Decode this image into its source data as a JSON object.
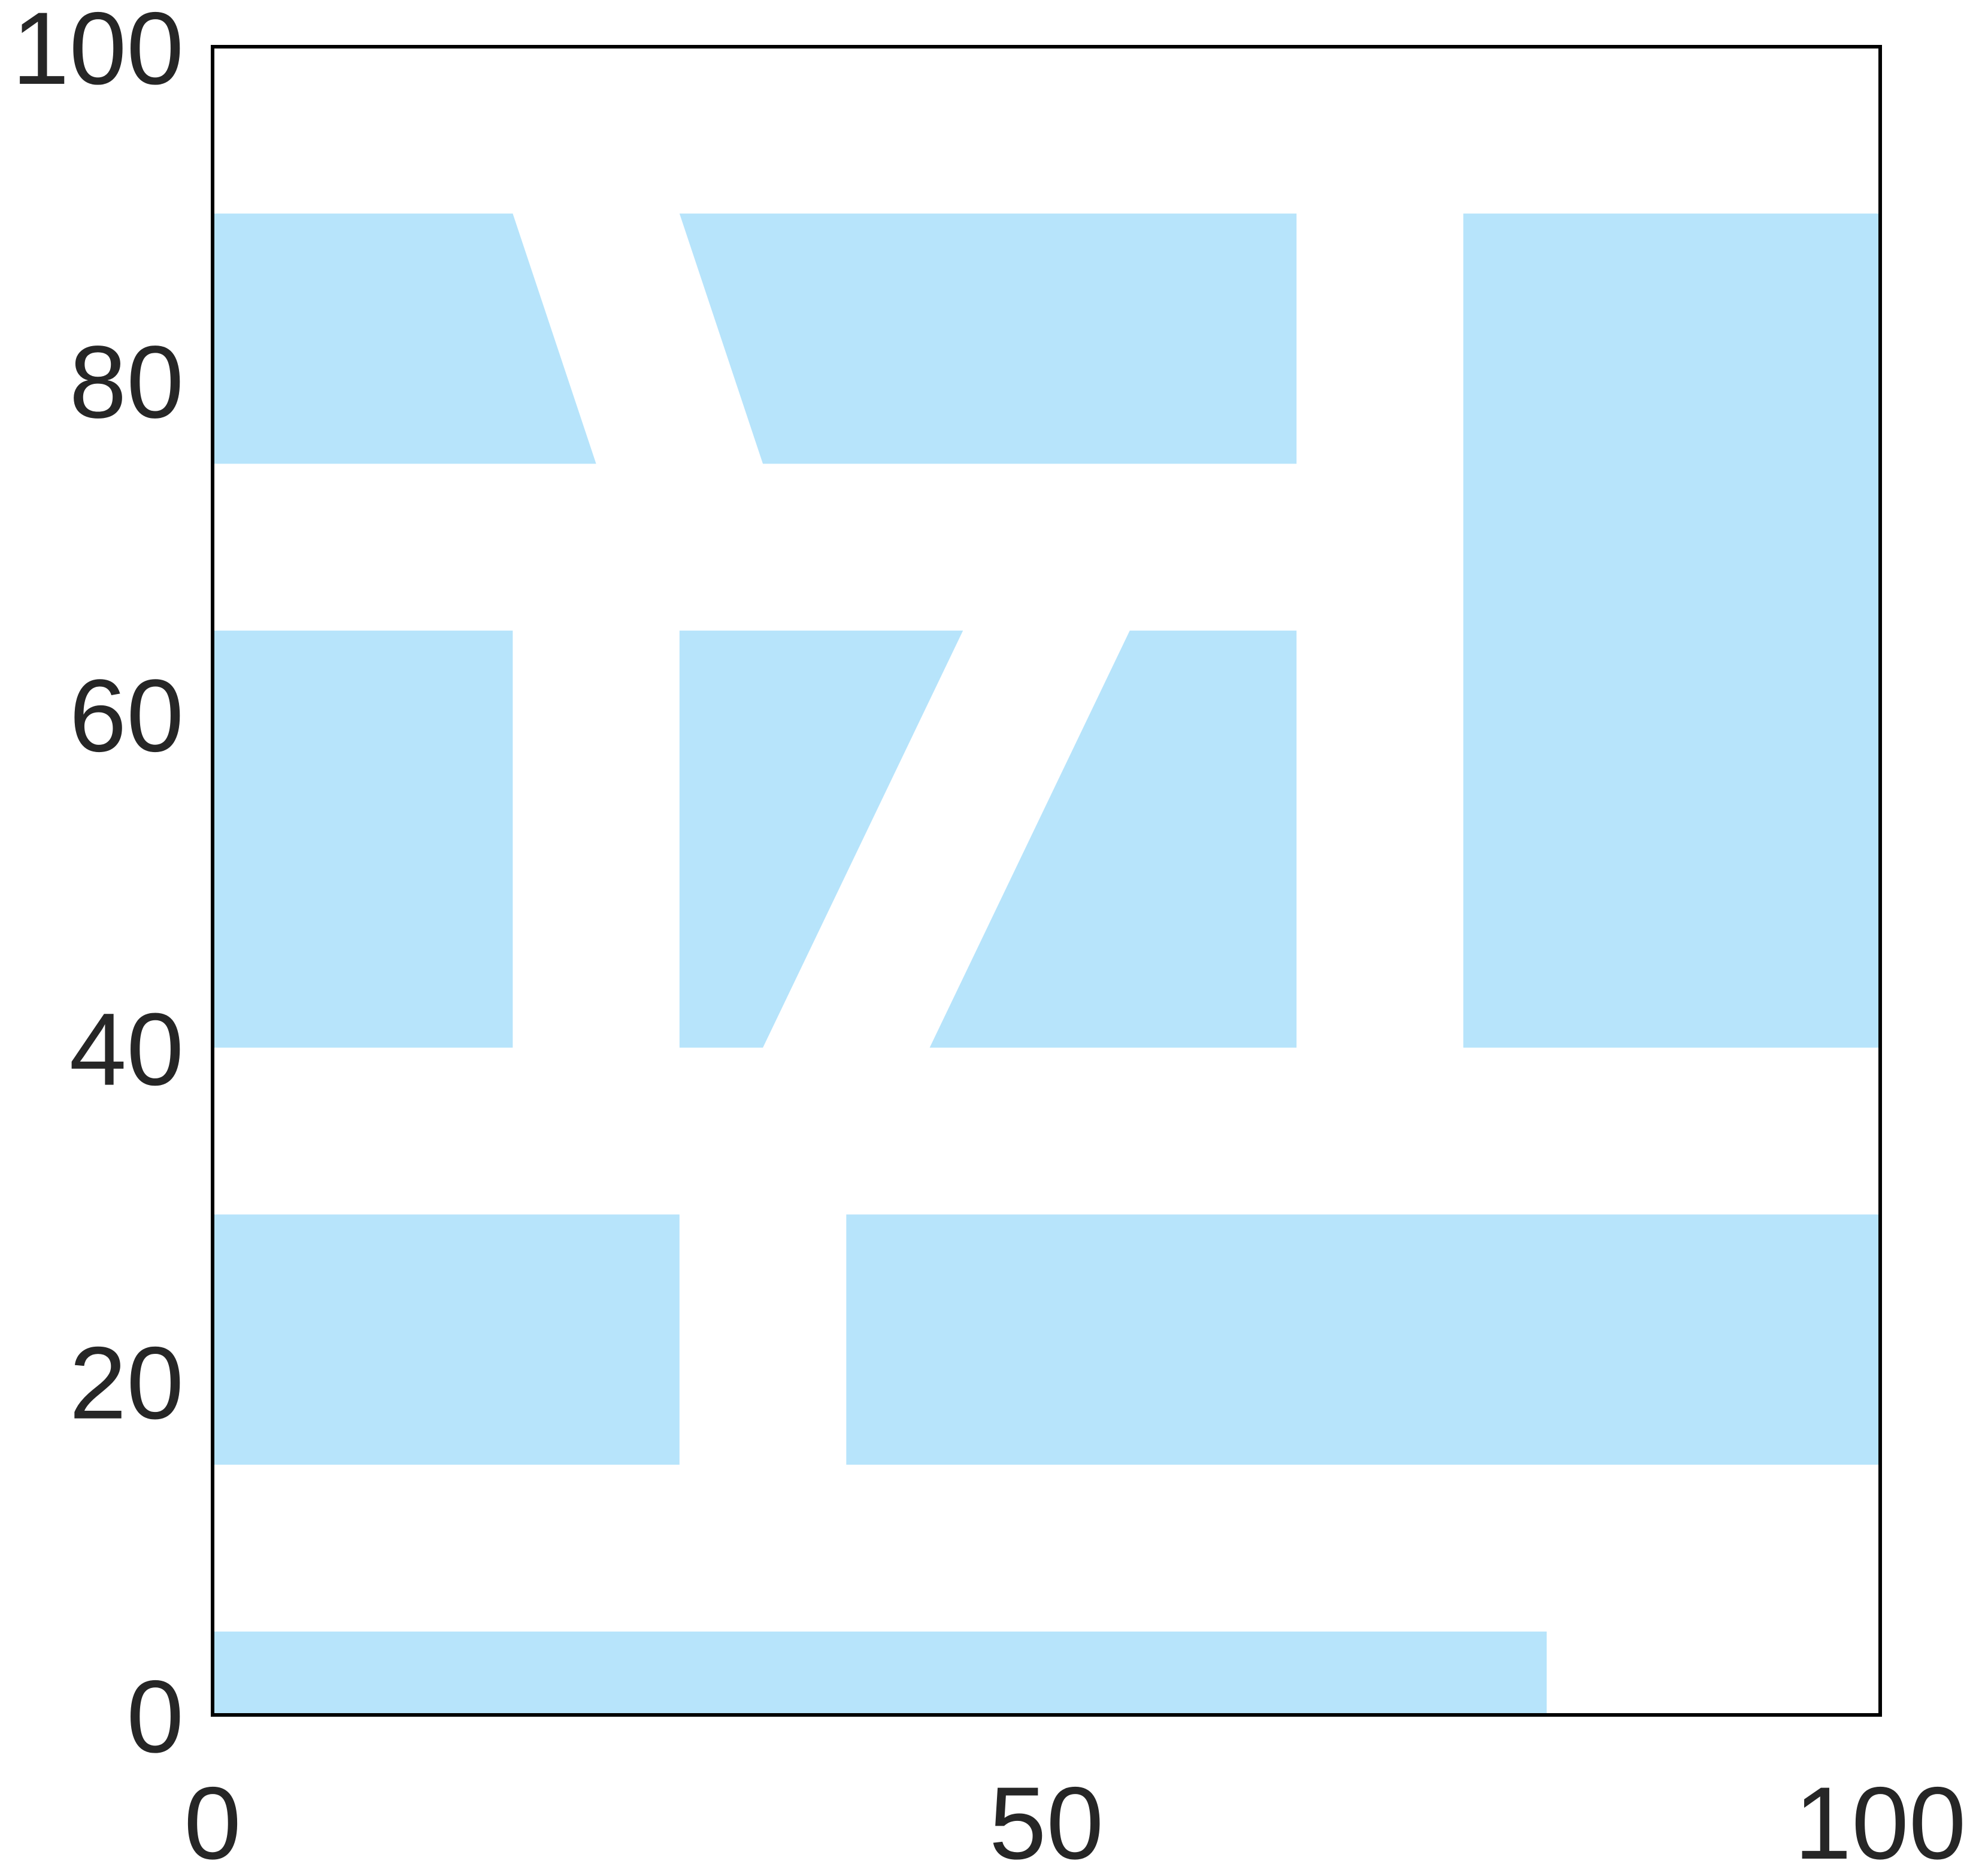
{
  "chart_data": {
    "type": "diagram",
    "title": "",
    "xlabel": "",
    "ylabel": "",
    "xlim": [
      0,
      100
    ],
    "ylim": [
      0,
      100
    ],
    "xticks": [
      "0",
      "50",
      "100"
    ],
    "yticks": [
      "0",
      "20",
      "40",
      "60",
      "80",
      "100"
    ],
    "grid": false,
    "fill_color": "#b7e4fb",
    "regions": [
      {
        "points": [
          [
            0,
            90
          ],
          [
            18,
            90
          ],
          [
            23,
            75
          ],
          [
            0,
            75
          ]
        ]
      },
      {
        "points": [
          [
            28,
            90
          ],
          [
            65,
            90
          ],
          [
            65,
            75
          ],
          [
            33,
            75
          ]
        ]
      },
      {
        "points": [
          [
            75,
            90
          ],
          [
            100,
            90
          ],
          [
            100,
            40
          ],
          [
            75,
            40
          ]
        ]
      },
      {
        "points": [
          [
            0,
            65
          ],
          [
            18,
            65
          ],
          [
            18,
            40
          ],
          [
            0,
            40
          ]
        ]
      },
      {
        "points": [
          [
            28,
            65
          ],
          [
            45,
            65
          ],
          [
            33,
            40
          ],
          [
            28,
            40
          ]
        ]
      },
      {
        "points": [
          [
            55,
            65
          ],
          [
            65,
            65
          ],
          [
            65,
            40
          ],
          [
            43,
            40
          ]
        ]
      },
      {
        "points": [
          [
            0,
            30
          ],
          [
            28,
            30
          ],
          [
            28,
            15
          ],
          [
            0,
            15
          ]
        ]
      },
      {
        "points": [
          [
            38,
            30
          ],
          [
            100,
            30
          ],
          [
            100,
            15
          ],
          [
            38,
            15
          ]
        ]
      },
      {
        "points": [
          [
            0,
            5
          ],
          [
            80,
            5
          ],
          [
            80,
            0
          ],
          [
            0,
            0
          ]
        ]
      }
    ]
  }
}
